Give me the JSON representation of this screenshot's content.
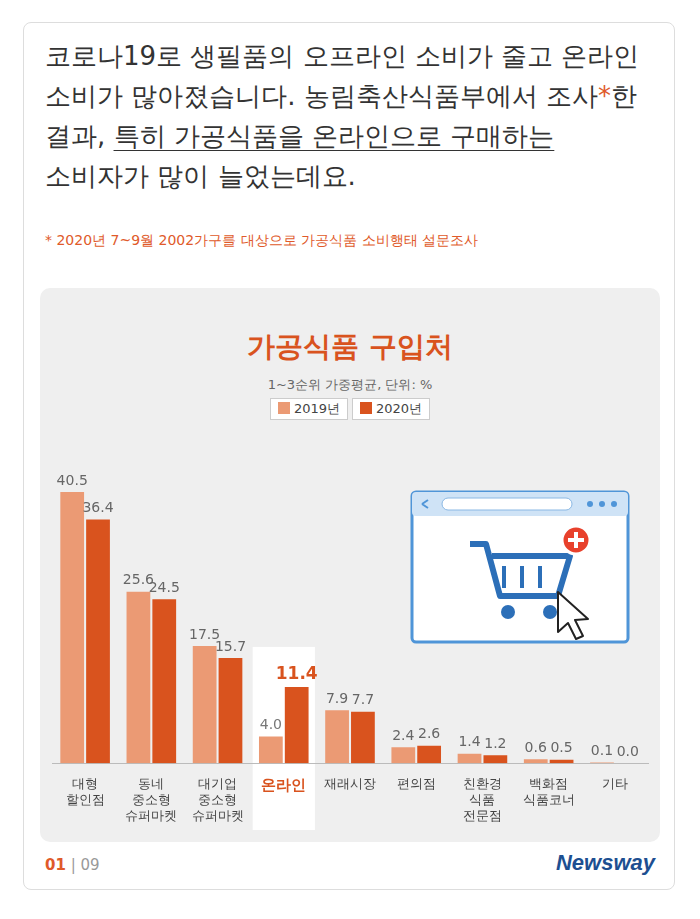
{
  "header": {
    "text_before": "코로나19로 생필품의 오프라인 소비가 줄고 온라인 소비가 많아졌습니다. 농림축산식품부에서 조사",
    "mark": "*",
    "text_middle": "한 결과, ",
    "underlined": "특히 가공식품을 온라인으로 구매하는",
    "text_after": " 소비자가 많이 늘었는데요."
  },
  "footnote": "* 2020년 7~9월 2002가구를 대상으로 가공식품 소비행태 설문조사",
  "chart_data": {
    "type": "bar",
    "title": "가공식품 구입처",
    "subtitle": "1~3순위 가중평균, 단위: %",
    "categories": [
      "대형 할인점",
      "동네 중소형 슈퍼마켓",
      "대기업 중소형 슈퍼마켓",
      "온라인",
      "재래시장",
      "편의점",
      "친환경 식품 전문점",
      "백화점 식품코너",
      "기타"
    ],
    "series": [
      {
        "name": "2019년",
        "color": "#eb9a74",
        "values": [
          40.5,
          25.6,
          17.5,
          4.0,
          7.9,
          2.4,
          1.4,
          0.6,
          0.1
        ],
        "value_labels": [
          "40.5",
          "25.6",
          "17.5",
          "4.0",
          "7.9",
          "2.4",
          "1.4",
          "0.6",
          "0.1"
        ]
      },
      {
        "name": "2020년",
        "color": "#d9531e",
        "values": [
          36.4,
          24.5,
          15.7,
          11.4,
          7.7,
          2.6,
          1.2,
          0.5,
          0.0
        ],
        "value_labels": [
          "36.4",
          "24.5",
          "15.7",
          "11.4",
          "7.7",
          "2.6",
          "1.2",
          "0.5",
          "0.0"
        ]
      }
    ],
    "ylim": [
      0,
      45
    ],
    "grid": false,
    "legend": "top",
    "data_labels": true,
    "tick_labels": "x"
  },
  "footer": {
    "page": "01",
    "separator": "|",
    "total": "09",
    "logo": "Newsway"
  }
}
